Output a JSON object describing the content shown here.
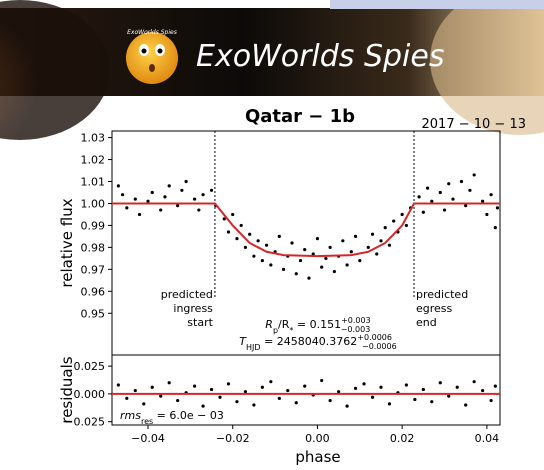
{
  "banner": {
    "title": "ExoWorlds Spies",
    "logo_text": "ExoWorlds Spies"
  },
  "chart_data": [
    {
      "type": "scatter",
      "title": "Qatar − 1b",
      "date": "2017 − 10 − 13",
      "ylabel": "relative flux",
      "xlim": [
        -0.0485,
        0.0431
      ],
      "ylim": [
        0.931,
        1.033
      ],
      "yticks": [
        {
          "value": 0.95,
          "label": "0.95"
        },
        0.96,
        0.97,
        0.98,
        0.99,
        {
          "value": 1,
          "label": "1.00"
        },
        1.01,
        1.02,
        1.03
      ],
      "vlines": [
        -0.0242,
        0.0228
      ],
      "annotations": [
        [
          "predicted",
          "ingress",
          "start"
        ],
        [
          "predicted",
          "egress",
          "end"
        ]
      ],
      "fit": [
        {
          "lhs": [
            "R",
            "p",
            "/R",
            "*"
          ],
          "value": " = 0.151",
          "err_plus": "+0.003",
          "err_minus": "−0.003"
        },
        {
          "lhs": [
            "T",
            "HJD"
          ],
          "value": " = 2458040.3762",
          "err_plus": "+0.0006",
          "err_minus": "−0.0006"
        }
      ],
      "series": [
        {
          "type": "scatter",
          "color": "#000000",
          "x": [
            -0.047,
            -0.046,
            -0.045,
            -0.043,
            -0.042,
            -0.04,
            -0.039,
            -0.037,
            -0.036,
            -0.035,
            -0.033,
            -0.032,
            -0.031,
            -0.029,
            -0.028,
            -0.027,
            -0.025,
            -0.024,
            -0.022,
            -0.021,
            -0.02,
            -0.019,
            -0.018,
            -0.017,
            -0.016,
            -0.015,
            -0.014,
            -0.013,
            -0.012,
            -0.011,
            -0.01,
            -0.009,
            -0.008,
            -0.007,
            -0.006,
            -0.005,
            -0.004,
            -0.003,
            -0.002,
            -0.001,
            0.0,
            0.001,
            0.002,
            0.003,
            0.004,
            0.005,
            0.006,
            0.007,
            0.008,
            0.009,
            0.01,
            0.012,
            0.013,
            0.014,
            0.015,
            0.016,
            0.017,
            0.018,
            0.019,
            0.02,
            0.021,
            0.022,
            0.024,
            0.025,
            0.026,
            0.027,
            0.029,
            0.03,
            0.031,
            0.032,
            0.034,
            0.035,
            0.036,
            0.037,
            0.039,
            0.04,
            0.041,
            0.042,
            0.0425
          ],
          "y": [
            1.008,
            1.004,
            0.998,
            1.002,
            0.995,
            1.001,
            1.005,
            0.997,
            1.003,
            1.008,
            0.999,
            1.006,
            1.01,
            1.002,
            0.997,
            1.004,
            1.006,
            0.999,
            0.993,
            0.987,
            0.995,
            0.984,
            0.99,
            0.98,
            0.986,
            0.976,
            0.983,
            0.974,
            0.981,
            0.972,
            0.978,
            0.985,
            0.97,
            0.976,
            0.982,
            0.968,
            0.974,
            0.979,
            0.966,
            0.977,
            0.984,
            0.971,
            0.975,
            0.98,
            0.969,
            0.976,
            0.983,
            0.972,
            0.978,
            0.985,
            0.974,
            0.98,
            0.986,
            0.977,
            0.983,
            0.989,
            0.981,
            0.992,
            0.987,
            0.995,
            0.99,
            0.998,
            1.003,
            0.996,
            1.007,
            1.001,
            1.005,
            0.997,
            1.009,
            1.002,
            1.01,
            0.999,
            1.006,
            1.013,
            1.001,
            0.995,
            1.004,
            0.989,
            0.998
          ]
        },
        {
          "type": "line",
          "color": "#d62728",
          "x": [
            -0.0485,
            -0.0242,
            -0.02,
            -0.016,
            -0.012,
            -0.008,
            0,
            0.008,
            0.012,
            0.016,
            0.02,
            0.0228,
            0.0431
          ],
          "y": [
            1.0,
            1.0,
            0.99,
            0.982,
            0.978,
            0.9765,
            0.976,
            0.9765,
            0.978,
            0.982,
            0.99,
            1.0,
            1.0
          ]
        }
      ]
    },
    {
      "type": "scatter",
      "ylabel": "residuals",
      "xlabel": "phase",
      "rms": [
        "rms",
        "res",
        " = 6.0e − 03"
      ],
      "xlim": [
        -0.0485,
        0.0431
      ],
      "ylim": [
        -0.028,
        0.035
      ],
      "yticks": [
        {
          "value": -0.025,
          "label": "−0.025"
        },
        {
          "value": 0,
          "label": "0.000"
        },
        0.025
      ],
      "xticks": [
        {
          "value": -0.04,
          "label": "−0.04"
        },
        {
          "value": -0.02,
          "label": "−0.02"
        },
        {
          "value": 0,
          "label": "0.00"
        },
        0.02,
        0.04
      ],
      "series": [
        {
          "type": "scatter",
          "color": "#000000",
          "x": [
            -0.047,
            -0.045,
            -0.043,
            -0.041,
            -0.039,
            -0.037,
            -0.035,
            -0.033,
            -0.031,
            -0.029,
            -0.027,
            -0.025,
            -0.023,
            -0.021,
            -0.019,
            -0.017,
            -0.015,
            -0.013,
            -0.011,
            -0.009,
            -0.007,
            -0.005,
            -0.003,
            -0.001,
            0.001,
            0.003,
            0.005,
            0.007,
            0.009,
            0.011,
            0.013,
            0.015,
            0.017,
            0.019,
            0.021,
            0.023,
            0.025,
            0.027,
            0.029,
            0.031,
            0.033,
            0.035,
            0.037,
            0.039,
            0.041,
            0.042
          ],
          "y": [
            0.008,
            -0.004,
            0.003,
            -0.009,
            0.006,
            -0.002,
            0.01,
            -0.006,
            0.001,
            0.007,
            -0.011,
            0.004,
            -0.003,
            0.009,
            -0.007,
            0.002,
            -0.01,
            0.006,
            0.011,
            -0.004,
            0.003,
            -0.008,
            0.007,
            -0.001,
            0.012,
            -0.006,
            0.002,
            -0.011,
            0.005,
            0.009,
            -0.003,
            0.006,
            -0.009,
            0.001,
            0.008,
            -0.005,
            0.004,
            -0.007,
            0.01,
            -0.002,
            0.006,
            -0.01,
            0.011,
            0.003,
            -0.006,
            0.007
          ]
        },
        {
          "type": "line",
          "color": "#d62728",
          "x": [
            -0.0485,
            0.0431
          ],
          "y": [
            0,
            0
          ]
        }
      ]
    }
  ]
}
